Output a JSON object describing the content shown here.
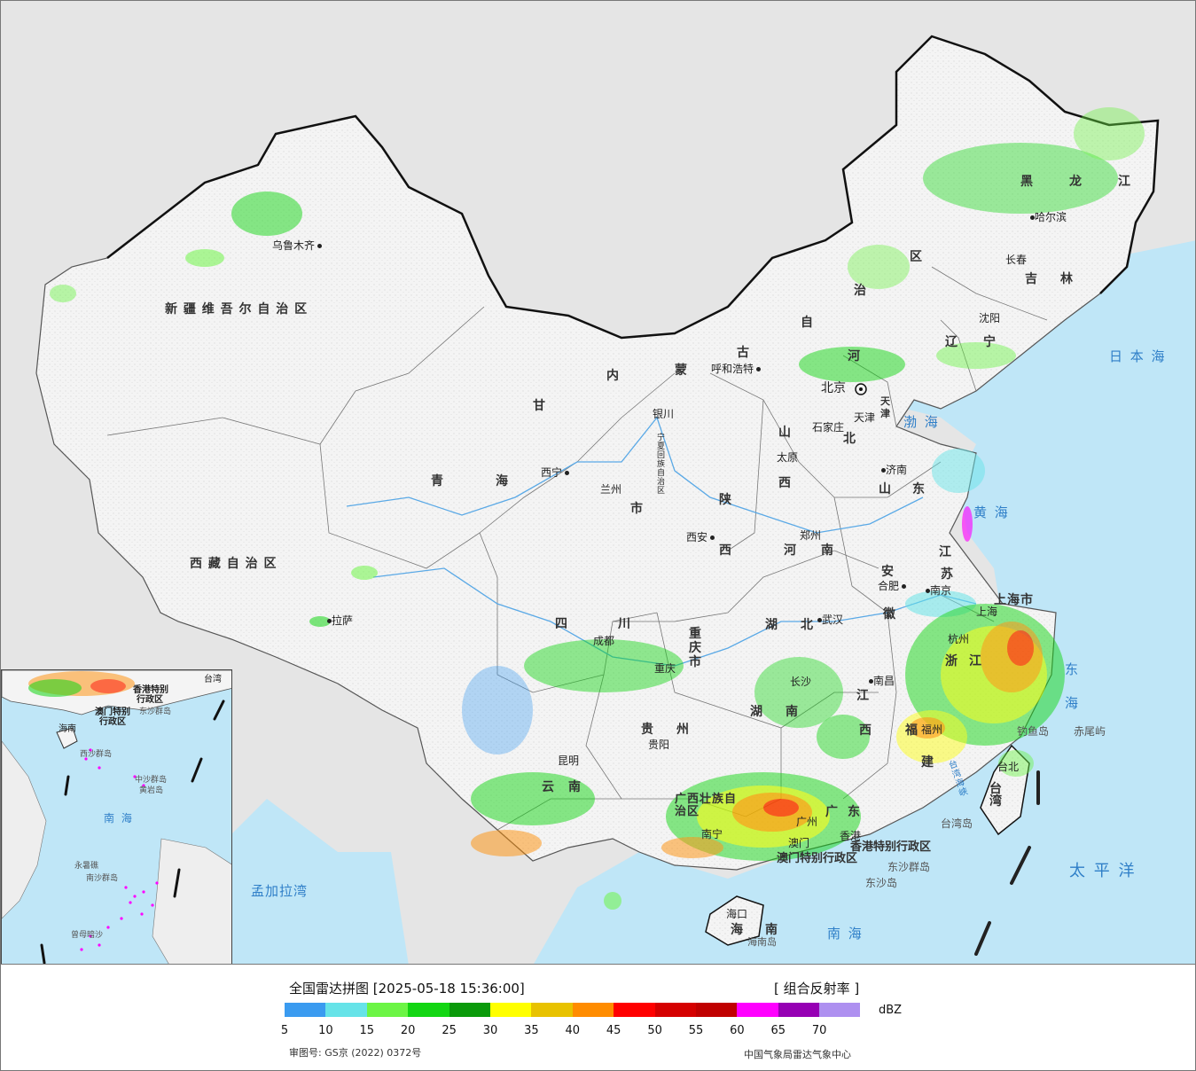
{
  "legend": {
    "title": "全国雷达拼图 [2025-05-18 15:36:00]",
    "product": "[ 组合反射率 ]",
    "unit": "dBZ",
    "colors": [
      "#3a9bf0",
      "#66e3e8",
      "#6cf545",
      "#13d613",
      "#0a9a0a",
      "#ffff00",
      "#e8c200",
      "#ff8c00",
      "#ff0000",
      "#d50000",
      "#c00000",
      "#ff00ff",
      "#9600b4",
      "#ae90f0"
    ],
    "ticks": [
      "5",
      "10",
      "15",
      "20",
      "25",
      "30",
      "35",
      "40",
      "45",
      "50",
      "55",
      "60",
      "65",
      "70"
    ],
    "approval": "审图号: GS京 (2022) 0372号",
    "org": "中国气象局雷达气象中心"
  },
  "provinces": [
    {
      "id": "xinjiang",
      "text": "新 疆 维 吾 尔 自 治 区"
    },
    {
      "id": "xizang",
      "text": "西 藏 自 治 区"
    },
    {
      "id": "qinghai-a",
      "text": "青"
    },
    {
      "id": "qinghai-b",
      "text": "海"
    },
    {
      "id": "gansu",
      "text": "甘"
    },
    {
      "id": "neimenggu-a",
      "text": "内"
    },
    {
      "id": "neimenggu-b",
      "text": "蒙"
    },
    {
      "id": "neimenggu-c",
      "text": "古"
    },
    {
      "id": "neimenggu-d",
      "text": "自"
    },
    {
      "id": "neimenggu-e",
      "text": "治"
    },
    {
      "id": "neimenggu-f",
      "text": "区"
    },
    {
      "id": "heilongjiang-a",
      "text": "黑"
    },
    {
      "id": "heilongjiang-b",
      "text": "龙"
    },
    {
      "id": "heilongjiang-c",
      "text": "江"
    },
    {
      "id": "jilin-a",
      "text": "吉"
    },
    {
      "id": "jilin-b",
      "text": "林"
    },
    {
      "id": "liaoning-a",
      "text": "辽"
    },
    {
      "id": "liaoning-b",
      "text": "宁"
    },
    {
      "id": "hebei-a",
      "text": "河"
    },
    {
      "id": "hebei-b",
      "text": "北"
    },
    {
      "id": "shanxi-a",
      "text": "山"
    },
    {
      "id": "shanxi-b",
      "text": "西"
    },
    {
      "id": "shandong-a",
      "text": "山"
    },
    {
      "id": "shandong-b",
      "text": "东"
    },
    {
      "id": "henan-a",
      "text": "河"
    },
    {
      "id": "henan-b",
      "text": "南"
    },
    {
      "id": "shaanxi-a",
      "text": "陕"
    },
    {
      "id": "shaanxi-b",
      "text": "西"
    },
    {
      "id": "ningxia",
      "text": "宁夏回族自治区"
    },
    {
      "id": "sichuan-a",
      "text": "四"
    },
    {
      "id": "sichuan-b",
      "text": "川"
    },
    {
      "id": "chongqing",
      "text": "重庆市"
    },
    {
      "id": "hubei-a",
      "text": "湖"
    },
    {
      "id": "hubei-b",
      "text": "北"
    },
    {
      "id": "hunan-a",
      "text": "湖"
    },
    {
      "id": "hunan-b",
      "text": "南"
    },
    {
      "id": "guizhou-a",
      "text": "贵"
    },
    {
      "id": "guizhou-b",
      "text": "州"
    },
    {
      "id": "yunnan-a",
      "text": "云"
    },
    {
      "id": "yunnan-b",
      "text": "南"
    },
    {
      "id": "guangxi",
      "text": "广西壮族自治区"
    },
    {
      "id": "guangdong-a",
      "text": "广"
    },
    {
      "id": "guangdong-b",
      "text": "东"
    },
    {
      "id": "jiangxi-a",
      "text": "江"
    },
    {
      "id": "jiangxi-b",
      "text": "西"
    },
    {
      "id": "fujian-a",
      "text": "福"
    },
    {
      "id": "fujian-b",
      "text": "建"
    },
    {
      "id": "zhejiang-a",
      "text": "浙"
    },
    {
      "id": "zhejiang-b",
      "text": "江"
    },
    {
      "id": "anhui-a",
      "text": "安"
    },
    {
      "id": "anhui-b",
      "text": "徽"
    },
    {
      "id": "jiangsu-a",
      "text": "江"
    },
    {
      "id": "jiangsu-b",
      "text": "苏"
    },
    {
      "id": "shanghai",
      "text": "上海市"
    },
    {
      "id": "tianjin",
      "text": "天津"
    },
    {
      "id": "hainan-a",
      "text": "海"
    },
    {
      "id": "hainan-b",
      "text": "南"
    },
    {
      "id": "taiwan",
      "text": "台湾"
    },
    {
      "id": "gansu-shi",
      "text": "市"
    }
  ],
  "cities": [
    {
      "id": "urumqi",
      "text": "乌鲁木齐"
    },
    {
      "id": "lhasa",
      "text": "拉萨"
    },
    {
      "id": "xining",
      "text": "西宁"
    },
    {
      "id": "lanzhou",
      "text": "兰州"
    },
    {
      "id": "yinchuan",
      "text": "银川"
    },
    {
      "id": "hohhot",
      "text": "呼和浩特"
    },
    {
      "id": "beijing",
      "text": "北京"
    },
    {
      "id": "tianjin",
      "text": "天津"
    },
    {
      "id": "shijiazhuang",
      "text": "石家庄"
    },
    {
      "id": "taiyuan",
      "text": "太原"
    },
    {
      "id": "jinan",
      "text": "济南"
    },
    {
      "id": "zhengzhou",
      "text": "郑州"
    },
    {
      "id": "xian",
      "text": "西安"
    },
    {
      "id": "hefei",
      "text": "合肥"
    },
    {
      "id": "nanjing",
      "text": "南京"
    },
    {
      "id": "shanghai",
      "text": "上海"
    },
    {
      "id": "hangzhou",
      "text": "杭州"
    },
    {
      "id": "wuhan",
      "text": "武汉"
    },
    {
      "id": "chengdu",
      "text": "成都"
    },
    {
      "id": "chongqing",
      "text": "重庆"
    },
    {
      "id": "changsha",
      "text": "长沙"
    },
    {
      "id": "nanchang",
      "text": "南昌"
    },
    {
      "id": "fuzhou",
      "text": "福州"
    },
    {
      "id": "guiyang",
      "text": "贵阳"
    },
    {
      "id": "kunming",
      "text": "昆明"
    },
    {
      "id": "nanning",
      "text": "南宁"
    },
    {
      "id": "guangzhou",
      "text": "广州"
    },
    {
      "id": "hongkong",
      "text": "香港"
    },
    {
      "id": "macau",
      "text": "澳门"
    },
    {
      "id": "haikou",
      "text": "海口"
    },
    {
      "id": "taibei",
      "text": "台北"
    },
    {
      "id": "harbin",
      "text": "哈尔滨"
    },
    {
      "id": "changchun",
      "text": "长春"
    },
    {
      "id": "shenyang",
      "text": "沈阳"
    }
  ],
  "seas": [
    {
      "id": "japan-sea",
      "text": "日 本 海"
    },
    {
      "id": "bohai",
      "text": "渤 海"
    },
    {
      "id": "yellow-sea",
      "text": "黄 海"
    },
    {
      "id": "east-sea",
      "text": "东 海"
    },
    {
      "id": "pacific",
      "text": "太 平 洋"
    },
    {
      "id": "south-sea",
      "text": "南 海"
    },
    {
      "id": "bengal",
      "text": "孟加拉湾"
    },
    {
      "id": "taiwan-strait",
      "text": "台湾海峡"
    }
  ],
  "islands": [
    {
      "id": "diaoyu",
      "text": "钓鱼岛"
    },
    {
      "id": "chiwei",
      "text": "赤尾屿"
    },
    {
      "id": "taiwan-island",
      "text": "台湾岛"
    },
    {
      "id": "dongsha-qd",
      "text": "东沙群岛"
    },
    {
      "id": "dongsha",
      "text": "东沙岛"
    },
    {
      "id": "hainan-island",
      "text": "海南岛"
    },
    {
      "id": "hk-sar",
      "text": "香港特别行政区"
    },
    {
      "id": "macau-sar",
      "text": "澳门特别行政区"
    }
  ],
  "inset": {
    "labels": [
      {
        "id": "inset-hk",
        "text": "香港特别"
      },
      {
        "id": "inset-hk2",
        "text": "行政区"
      },
      {
        "id": "inset-mo",
        "text": "澳门特别"
      },
      {
        "id": "inset-mo2",
        "text": "行政区"
      },
      {
        "id": "inset-dongsha",
        "text": "东沙群岛"
      },
      {
        "id": "inset-xisha",
        "text": "西沙群岛"
      },
      {
        "id": "inset-zhongsha",
        "text": "中沙群岛"
      },
      {
        "id": "inset-huangyan",
        "text": "黄岩岛"
      },
      {
        "id": "inset-nanhai",
        "text": "南 海"
      },
      {
        "id": "inset-nansha",
        "text": "南沙群岛"
      },
      {
        "id": "inset-yongshu",
        "text": "永暑礁"
      },
      {
        "id": "inset-zengmu",
        "text": "曾母暗沙"
      },
      {
        "id": "inset-hainan",
        "text": "海南"
      },
      {
        "id": "inset-taiwan",
        "text": "台湾"
      }
    ]
  }
}
